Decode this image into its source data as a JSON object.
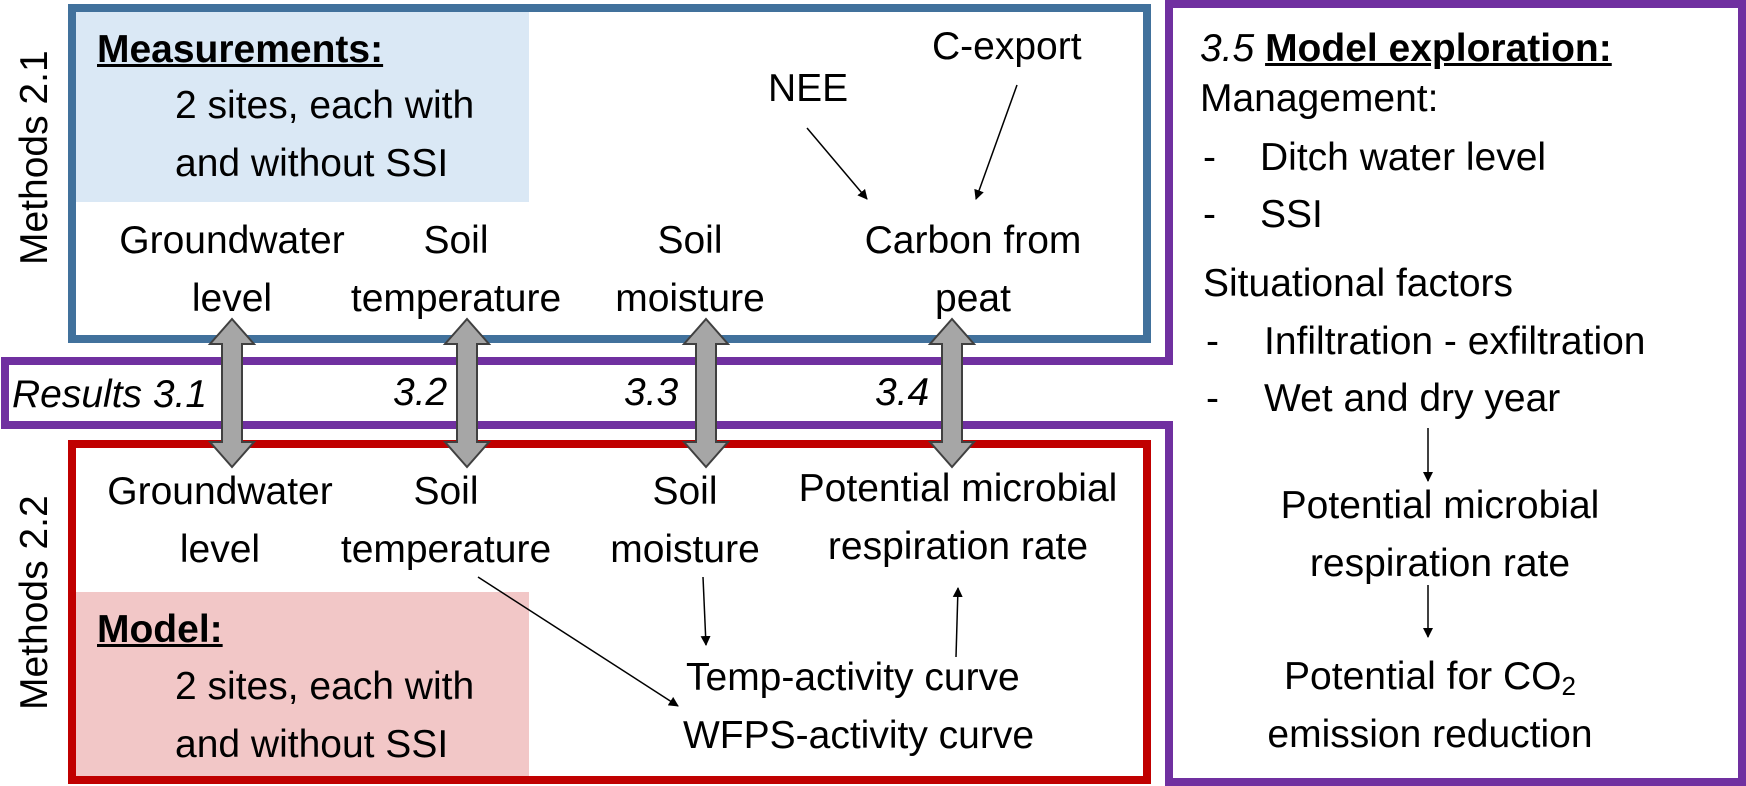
{
  "colors": {
    "methods21_border": "#41719C",
    "measure_fill": "#DAE8F5",
    "methods22_border": "#C00000",
    "model_fill": "#F2C7C7",
    "results_border": "#7030A0",
    "arrow_fill": "#A6A6A6"
  },
  "methods21": {
    "side_label": "Methods 2.1",
    "heading": "Measurements:",
    "desc_line1": "2 sites, each with",
    "desc_line2": "and without SSI",
    "nee": "NEE",
    "cexport": "C-export",
    "vars": [
      {
        "line1": "Groundwater",
        "line2": "level"
      },
      {
        "line1": "Soil",
        "line2": "temperature"
      },
      {
        "line1": "Soil",
        "line2": "moisture"
      },
      {
        "line1": "Carbon from",
        "line2": "peat"
      }
    ]
  },
  "results": {
    "prefix": "Results 3.1",
    "n2": "3.2",
    "n3": "3.3",
    "n4": "3.4"
  },
  "methods22": {
    "side_label": "Methods 2.2",
    "heading": "Model:",
    "desc_line1": "2 sites, each with",
    "desc_line2": "and without SSI",
    "vars": [
      {
        "line1": "Groundwater",
        "line2": "level"
      },
      {
        "line1": "Soil",
        "line2": "temperature"
      },
      {
        "line1": "Soil",
        "line2": "moisture"
      },
      {
        "line1": "Potential microbial",
        "line2": "respiration rate"
      }
    ],
    "curve1": "Temp-activity curve",
    "curve2": "WFPS-activity curve"
  },
  "exploration": {
    "number": "3.5",
    "heading": "Model exploration:",
    "management": "Management:",
    "mgmt_items": [
      "Ditch water level",
      "SSI"
    ],
    "situational": "Situational factors",
    "sit_items": [
      "Infiltration - exfiltration",
      "Wet and dry year"
    ],
    "bullet": "-",
    "pmr_line1": "Potential microbial",
    "pmr_line2": "respiration rate",
    "pot_line1_pre": "Potential for CO",
    "pot_line1_sub": "2",
    "pot_line2": "emission reduction"
  }
}
